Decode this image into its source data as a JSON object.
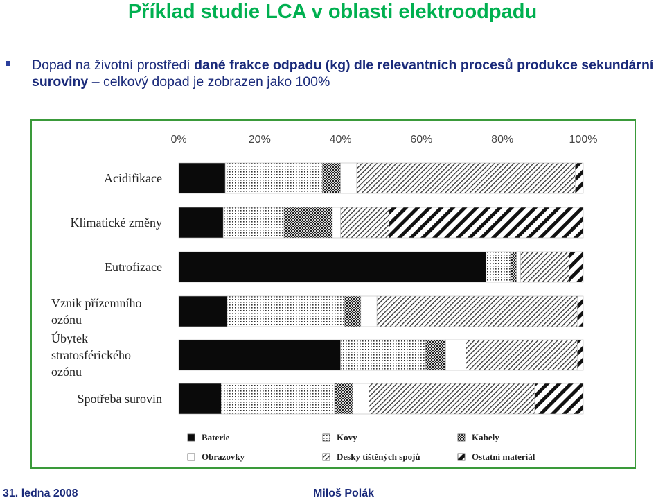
{
  "slide": {
    "title": "Příklad studie LCA v oblasti elektroodpadu",
    "bullet_part1": "Dopad na životní prostředí ",
    "bullet_bold1": "dané frakce odpadu (kg) dle relevantních procesů produkce sekundární suroviny",
    "bullet_part2": " – celkový dopad je zobrazen jako 100%",
    "footer_date": "31. ledna 2008",
    "footer_author": "Miloš Polák"
  },
  "chart_data": {
    "type": "bar",
    "orientation": "horizontal",
    "stacked": true,
    "xlim": [
      0,
      100
    ],
    "xticks": [
      "0%",
      "20%",
      "40%",
      "60%",
      "80%",
      "100%"
    ],
    "categories": [
      [
        "Acidifikace"
      ],
      [
        "Klimatické změny"
      ],
      [
        "Eutrofizace"
      ],
      [
        "Vznik přízemního",
        "ozónu"
      ],
      [
        "Úbytek",
        "stratosférického",
        "ozónu"
      ],
      [
        "Spotřeba surovin"
      ]
    ],
    "series": [
      {
        "name": "Baterie",
        "fill": "black",
        "values": [
          11.5,
          11,
          76,
          12,
          40,
          10.5
        ]
      },
      {
        "name": "Kovy",
        "fill": "dots",
        "values": [
          24,
          15,
          6,
          29,
          21,
          28
        ]
      },
      {
        "name": "Kabely",
        "fill": "checker",
        "values": [
          4.5,
          12,
          1.5,
          4,
          5,
          4.5
        ]
      },
      {
        "name": "Obrazovky",
        "fill": "white",
        "values": [
          4,
          2,
          1,
          4,
          5,
          4
        ]
      },
      {
        "name": "Desky tištěných spojů",
        "fill": "diag_fine",
        "values": [
          54,
          12,
          12,
          49.5,
          27.5,
          41
        ]
      },
      {
        "name": "Ostatní materiál",
        "fill": "diag_bold",
        "values": [
          2,
          48,
          3.5,
          1.5,
          1.5,
          12
        ]
      }
    ],
    "legend_position": "bottom",
    "grid": false
  }
}
